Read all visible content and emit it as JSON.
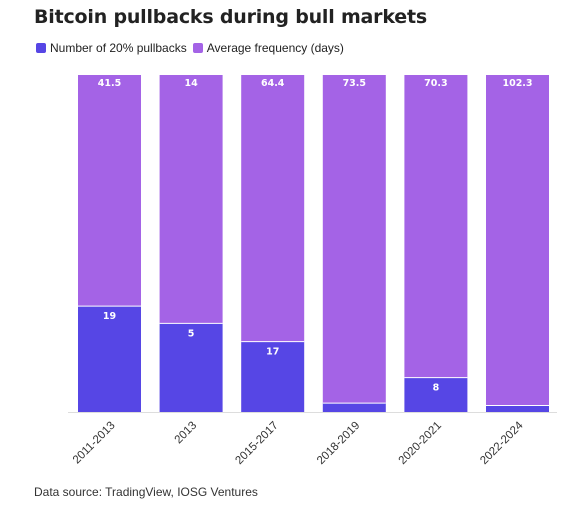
{
  "title": "Bitcoin pullbacks during bull markets",
  "footer": "Data source: TradingView, IOSG Ventures",
  "colors": {
    "pullbacks": "#5646e5",
    "frequency": "#a463e6",
    "baseline": "#dddddd"
  },
  "chart_data": {
    "type": "bar",
    "stacked": true,
    "stack_mode": "percent",
    "title": "Bitcoin pullbacks during bull markets",
    "categories": [
      "2011-2013",
      "2013",
      "2015-2017",
      "2018-2019",
      "2020-2021",
      "2022-2024"
    ],
    "series": [
      {
        "name": "Number of 20% pullbacks",
        "values": [
          19,
          5,
          17,
          2,
          8,
          2
        ],
        "labels": [
          "19",
          "5",
          "17",
          "",
          "8",
          ""
        ]
      },
      {
        "name": "Average frequency (days)",
        "values": [
          41.5,
          14,
          64.4,
          73.5,
          70.3,
          102.3
        ],
        "labels": [
          "41.5",
          "14",
          "64.4",
          "73.5",
          "70.3",
          "102.3"
        ]
      }
    ],
    "legend_position": "top-left",
    "grid": false,
    "xlabel": "",
    "ylabel": ""
  }
}
